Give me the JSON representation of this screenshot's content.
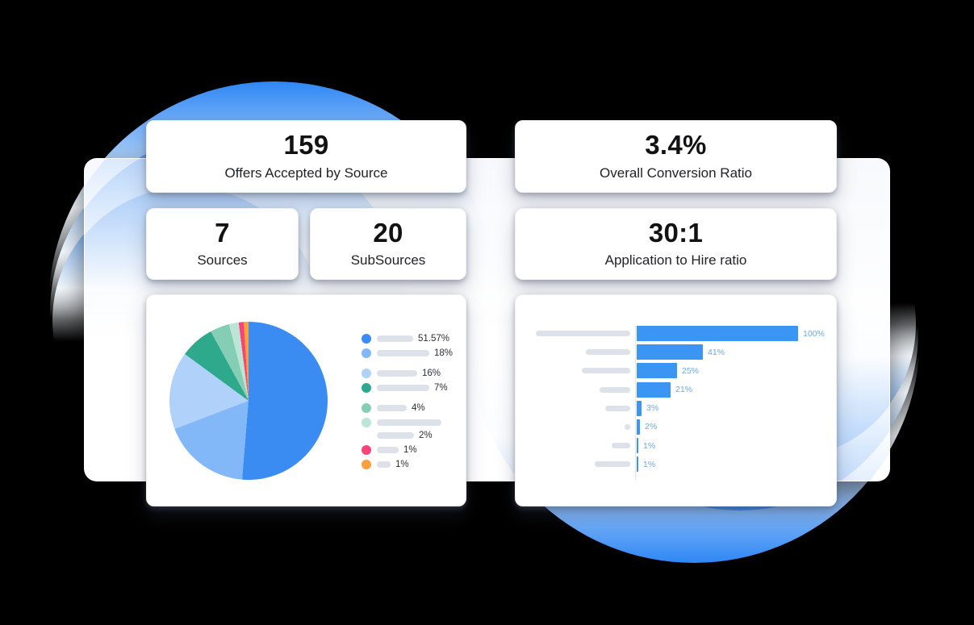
{
  "cards": {
    "offers": {
      "value": "159",
      "label": "Offers Accepted by Source"
    },
    "conversion": {
      "value": "3.4%",
      "label": "Overall Conversion Ratio"
    },
    "sources": {
      "value": "7",
      "label": "Sources"
    },
    "subsources": {
      "value": "20",
      "label": "SubSources"
    },
    "hire_ratio": {
      "value": "30:1",
      "label": "Application to Hire ratio"
    }
  },
  "colors": {
    "accent_blue": "#2F87F4",
    "bar_blue": "#3B96F3",
    "bar_value_label": "#69A9F1",
    "placeholder_gray": "#DCE1EA",
    "axis_gray": "#E2E7EE"
  },
  "chart_data": [
    {
      "type": "pie",
      "title": "",
      "labels": [
        "51.57%",
        "18%",
        "16%",
        "7%",
        "4%",
        "2%",
        "1%",
        "1%"
      ],
      "values": [
        51.57,
        18,
        16,
        7,
        4,
        2,
        1,
        1
      ],
      "colors": [
        "#3A8CF3",
        "#82B7F8",
        "#AFD1FA",
        "#2EA98C",
        "#85CDB4",
        "#BCE5D6",
        "#F8437B",
        "#F9A13E"
      ],
      "legend_position": "right",
      "start_angle_deg": 0,
      "direction": "clockwise",
      "legend_items": [
        {
          "label": "51.57%",
          "placeholder_width": 45
        },
        {
          "label": "18%",
          "placeholder_width": 65
        },
        {
          "label": "16%",
          "placeholder_width": 50,
          "group_gap": true
        },
        {
          "label": "7%",
          "placeholder_width": 65
        },
        {
          "label": "4%",
          "placeholder_width": 37,
          "group_gap": true
        },
        {
          "label": "2%",
          "placeholder_width": 80,
          "two_line": true,
          "second_line_width": 46
        },
        {
          "label": "1%",
          "placeholder_width": 27
        },
        {
          "label": "1%",
          "placeholder_width": 17
        }
      ]
    },
    {
      "type": "bar",
      "title": "",
      "orientation": "horizontal",
      "labels": [
        "100%",
        "41%",
        "25%",
        "21%",
        "3%",
        "2%",
        "1%",
        "1%"
      ],
      "values": [
        100,
        41,
        25,
        21,
        3,
        2,
        1,
        1
      ],
      "xlim": [
        0,
        100
      ],
      "category_placeholder_widths": [
        117,
        55,
        60,
        38,
        31,
        7,
        23,
        44
      ],
      "grid": false
    }
  ]
}
